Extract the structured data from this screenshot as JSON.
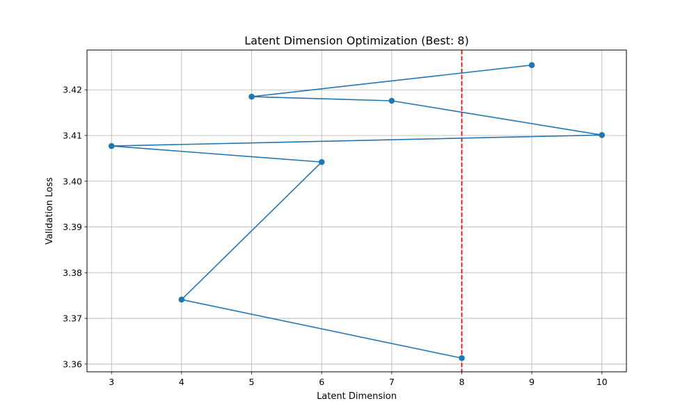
{
  "chart_data": {
    "type": "line",
    "title": "Latent Dimension Optimization (Best: 8)",
    "xlabel": "Latent Dimension",
    "ylabel": "Validation Loss",
    "xlim": [
      2.65,
      10.35
    ],
    "ylim": [
      3.3583,
      3.4287
    ],
    "xticks": [
      3,
      4,
      5,
      6,
      7,
      8,
      9,
      10
    ],
    "yticks": [
      3.36,
      3.37,
      3.38,
      3.39,
      3.4,
      3.41,
      3.42
    ],
    "ytick_labels": [
      "3.36",
      "3.37",
      "3.38",
      "3.39",
      "3.40",
      "3.41",
      "3.42"
    ],
    "grid": true,
    "series": [
      {
        "x": [
          9,
          5,
          7,
          10,
          3,
          6,
          4,
          8
        ],
        "y": [
          3.4254,
          3.4185,
          3.4176,
          3.4101,
          3.4077,
          3.4042,
          3.3741,
          3.3613
        ],
        "color": "#1f77b4",
        "marker": "circle"
      }
    ],
    "vline": {
      "x": 8,
      "color": "#ff0000",
      "style": "dashed"
    }
  }
}
